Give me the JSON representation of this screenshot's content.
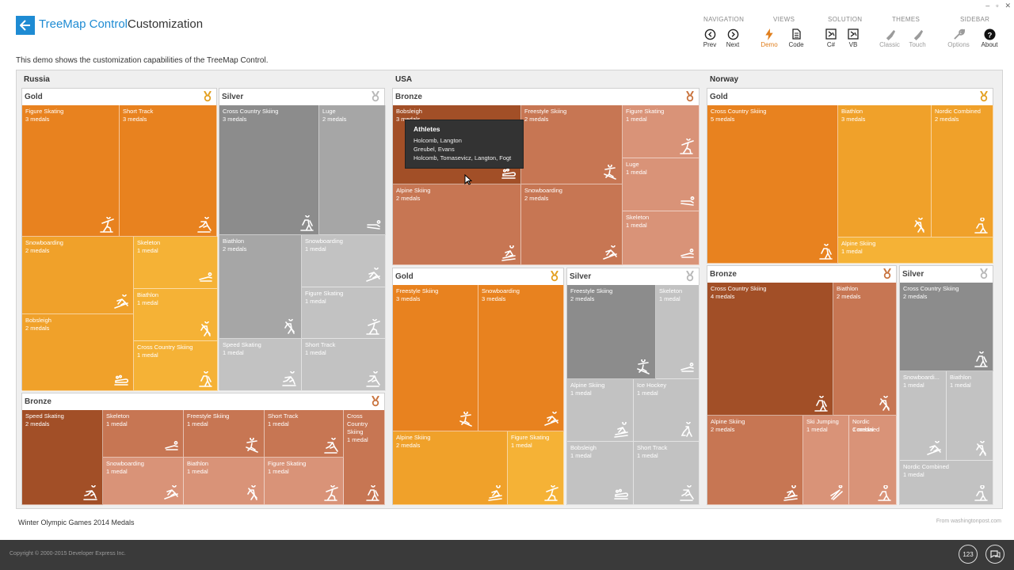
{
  "header": {
    "title_part1": "TreeMap Control",
    "title_part2": "Customization",
    "window_controls": [
      "–",
      "▫",
      "✕"
    ]
  },
  "ribbon": {
    "groups": {
      "navigation": "NAVIGATION",
      "views": "VIEWS",
      "solution": "SOLUTION",
      "themes": "THEMES",
      "sidebar": "SIDEBAR"
    },
    "buttons": {
      "prev": "Prev",
      "next": "Next",
      "demo": "Demo",
      "code": "Code",
      "csharp": "C#",
      "vb": "VB",
      "classic": "Classic",
      "touch": "Touch",
      "options": "Options",
      "about": "About"
    }
  },
  "description": "This demo shows the customization capabilities of the TreeMap Control.",
  "countries": {
    "russia": "Russia",
    "usa": "USA",
    "norway": "Norway"
  },
  "colors": {
    "gold": [
      "#e8821f",
      "#f0a12a",
      "#f5b236"
    ],
    "silver": [
      "#8c8c8c",
      "#a6a6a6",
      "#c2c2c2"
    ],
    "bronze": [
      "#a24f27",
      "#c77653",
      "#d99378"
    ]
  },
  "panels": [
    {
      "id": "ru-gold",
      "title": "Gold",
      "medal": "gold",
      "tiles": [
        {
          "name": "Figure Skating",
          "count": "3 medals",
          "icon": "figure-skating-icon"
        },
        {
          "name": "Short Track",
          "count": "3 medals",
          "icon": "short-track-icon"
        },
        {
          "name": "Snowboarding",
          "count": "2 medals",
          "icon": "snowboarding-icon"
        },
        {
          "name": "Skeleton",
          "count": "1 medal",
          "icon": "skeleton-icon"
        },
        {
          "name": "Biathlon",
          "count": "1 medal",
          "icon": "biathlon-icon"
        },
        {
          "name": "Bobsleigh",
          "count": "2 medals",
          "icon": "bobsleigh-icon"
        },
        {
          "name": "Cross Country Skiing",
          "count": "1 medal",
          "icon": "cross-country-icon"
        }
      ]
    },
    {
      "id": "ru-silver",
      "title": "Silver",
      "medal": "silver",
      "tiles": [
        {
          "name": "Cross Country Skiing",
          "count": "3 medals",
          "icon": "cross-country-icon"
        },
        {
          "name": "Luge",
          "count": "2 medals",
          "icon": "luge-icon"
        },
        {
          "name": "Biathlon",
          "count": "2 medals",
          "icon": "biathlon-icon"
        },
        {
          "name": "Snowboarding",
          "count": "1 medal",
          "icon": "snowboarding-icon"
        },
        {
          "name": "Figure Skating",
          "count": "1 medal",
          "icon": "figure-skating-icon"
        },
        {
          "name": "Speed Skating",
          "count": "1 medal",
          "icon": "speed-skating-icon"
        },
        {
          "name": "Short Track",
          "count": "1 medal",
          "icon": "short-track-icon"
        }
      ]
    },
    {
      "id": "ru-bronze",
      "title": "Bronze",
      "medal": "bronze",
      "tiles": [
        {
          "name": "Speed Skating",
          "count": "2 medals",
          "icon": "speed-skating-icon"
        },
        {
          "name": "Skeleton",
          "count": "1 medal",
          "icon": "skeleton-icon"
        },
        {
          "name": "Freestyle Skiing",
          "count": "1 medal",
          "icon": "freestyle-icon"
        },
        {
          "name": "Short Track",
          "count": "1 medal",
          "icon": "short-track-icon"
        },
        {
          "name": "Cross Country Skiing",
          "count": "1 medal",
          "icon": "cross-country-icon"
        },
        {
          "name": "Snowboarding",
          "count": "1 medal",
          "icon": "snowboarding-icon"
        },
        {
          "name": "Biathlon",
          "count": "1 medal",
          "icon": "biathlon-icon"
        },
        {
          "name": "Figure Skating",
          "count": "1 medal",
          "icon": "figure-skating-icon"
        }
      ]
    },
    {
      "id": "us-bronze",
      "title": "Bronze",
      "medal": "bronze",
      "tiles": [
        {
          "name": "Bobsleigh",
          "count": "3 medals",
          "icon": "bobsleigh-icon"
        },
        {
          "name": "Freestyle Skiing",
          "count": "2 medals",
          "icon": "freestyle-icon"
        },
        {
          "name": "Figure Skating",
          "count": "1 medal",
          "icon": "figure-skating-icon"
        },
        {
          "name": "Luge",
          "count": "1 medal",
          "icon": "luge-icon"
        },
        {
          "name": "Snowboarding",
          "count": "2 medals",
          "icon": "snowboarding-icon"
        },
        {
          "name": "Alpine Skiing",
          "count": "2 medals",
          "icon": "alpine-icon"
        },
        {
          "name": "Skeleton",
          "count": "1 medal",
          "icon": "skeleton-icon"
        }
      ]
    },
    {
      "id": "us-gold",
      "title": "Gold",
      "medal": "gold",
      "tiles": [
        {
          "name": "Freestyle Skiing",
          "count": "3 medals",
          "icon": "freestyle-icon"
        },
        {
          "name": "Snowboarding",
          "count": "3 medals",
          "icon": "snowboarding-icon"
        },
        {
          "name": "Alpine Skiing",
          "count": "2 medals",
          "icon": "alpine-icon"
        },
        {
          "name": "Figure Skating",
          "count": "1 medal",
          "icon": "figure-skating-icon"
        }
      ]
    },
    {
      "id": "us-silver",
      "title": "Silver",
      "medal": "silver",
      "tiles": [
        {
          "name": "Freestyle Skiing",
          "count": "2 medals",
          "icon": "freestyle-icon"
        },
        {
          "name": "Skeleton",
          "count": "1 medal",
          "icon": "skeleton-icon"
        },
        {
          "name": "Alpine Skiing",
          "count": "1 medal",
          "icon": "alpine-icon"
        },
        {
          "name": "Ice Hockey",
          "count": "1 medal",
          "icon": "ice-hockey-icon"
        },
        {
          "name": "Bobsleigh",
          "count": "1 medal",
          "icon": "bobsleigh-icon"
        },
        {
          "name": "Short Track",
          "count": "1 medal",
          "icon": "short-track-icon"
        }
      ]
    },
    {
      "id": "no-gold",
      "title": "Gold",
      "medal": "gold",
      "tiles": [
        {
          "name": "Cross Country Skiing",
          "count": "5 medals",
          "icon": "cross-country-icon"
        },
        {
          "name": "Biathlon",
          "count": "3 medals",
          "icon": "biathlon-icon"
        },
        {
          "name": "Nordic Combined",
          "count": "2 medals",
          "icon": "nordic-combined-icon"
        },
        {
          "name": "Alpine Skiing",
          "count": "1 medal",
          "icon": "alpine-icon"
        }
      ]
    },
    {
      "id": "no-bronze",
      "title": "Bronze",
      "medal": "bronze",
      "tiles": [
        {
          "name": "Cross Country Skiing",
          "count": "4 medals",
          "icon": "cross-country-icon"
        },
        {
          "name": "Biathlon",
          "count": "2 medals",
          "icon": "biathlon-icon"
        },
        {
          "name": "Alpine Skiing",
          "count": "2 medals",
          "icon": "alpine-icon"
        },
        {
          "name": "Ski Jumping",
          "count": "1 medal",
          "icon": "ski-jumping-icon"
        },
        {
          "name": "Nordic Combined",
          "count": "1 medal",
          "icon": "nordic-combined-icon"
        }
      ]
    },
    {
      "id": "no-silver",
      "title": "Silver",
      "medal": "silver",
      "tiles": [
        {
          "name": "Cross Country Skiing",
          "count": "2 medals",
          "icon": "cross-country-icon"
        },
        {
          "name": "Snowboardi...",
          "count": "1 medal",
          "icon": "snowboarding-icon"
        },
        {
          "name": "Biathlon",
          "count": "1 medal",
          "icon": "biathlon-icon"
        },
        {
          "name": "Nordic Combined",
          "count": "1 medal",
          "icon": "nordic-combined-icon"
        }
      ]
    }
  ],
  "tooltip": {
    "title": "Athletes",
    "lines": [
      "Holcomb, Langton",
      "Greubel, Evans",
      "Holcomb, Tomasevicz, Langton, Fogt"
    ]
  },
  "bottom_caption": "Winter Olympic Games 2014 Medals",
  "source": "From washingtonpost.com",
  "footer": {
    "copyright": "Copyright © 2000-2015 Developer Express Inc.",
    "btn1": "123"
  }
}
